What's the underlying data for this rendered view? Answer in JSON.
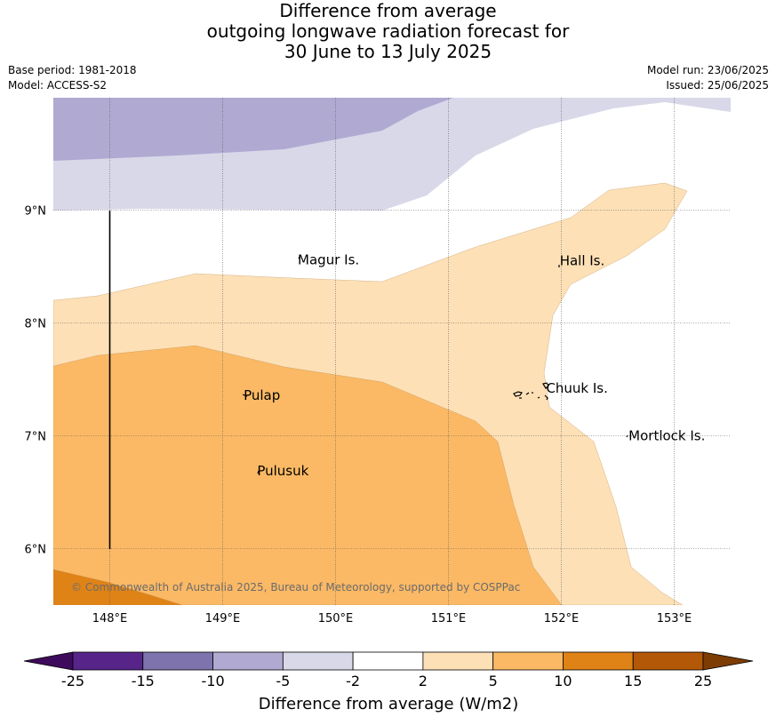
{
  "title": {
    "line1": "Difference from average",
    "line2": "outgoing longwave radiation forecast for",
    "line3": "30 June to 13 July 2025"
  },
  "meta": {
    "base_period": "Base period: 1981-2018",
    "model": "Model: ACCESS-S2",
    "model_run": "Model run: 23/06/2025",
    "issued": "Issued: 25/06/2025"
  },
  "map": {
    "lon_range": [
      147.5,
      153.5
    ],
    "lat_range": [
      5.5,
      10.0
    ],
    "lon_ticks": [
      {
        "value": 148,
        "label": "148°E"
      },
      {
        "value": 149,
        "label": "149°E"
      },
      {
        "value": 150,
        "label": "150°E"
      },
      {
        "value": 151,
        "label": "151°E"
      },
      {
        "value": 152,
        "label": "152°E"
      },
      {
        "value": 153,
        "label": "153°E"
      }
    ],
    "lat_ticks": [
      {
        "value": 9,
        "label": "9°N"
      },
      {
        "value": 8,
        "label": "8°N"
      },
      {
        "value": 7,
        "label": "7°N"
      },
      {
        "value": 6,
        "label": "6°N"
      }
    ],
    "places": [
      {
        "name": "Magur Is.",
        "lon": 149.65,
        "lat": 8.56
      },
      {
        "name": "Hall Is.",
        "lon": 151.97,
        "lat": 8.55
      },
      {
        "name": "Pulap",
        "lon": 149.17,
        "lat": 7.36
      },
      {
        "name": "Chuuk Is.",
        "lon": 151.85,
        "lat": 7.42
      },
      {
        "name": "Mortlock Is.",
        "lon": 152.58,
        "lat": 7.0
      },
      {
        "name": "Pulusuk",
        "lon": 149.29,
        "lat": 6.69
      }
    ],
    "copyright": "© Commonwealth of Australia 2025, Bureau of Meteorology, supported by COSPPac",
    "colors": {
      "neg10_neg5": "#b0aad2",
      "neg5_neg2": "#d8d8e9",
      "pos2_5": "#fde0b6",
      "pos5_10": "#fbb965",
      "pos10_15": "#e08317"
    }
  },
  "colorbar": {
    "title": "Difference from average (W/m2)",
    "ticks": [
      "-25",
      "-15",
      "-10",
      "-5",
      "-2",
      "2",
      "5",
      "10",
      "15",
      "25"
    ],
    "colors": [
      "#3e0a5b",
      "#57258a",
      "#7f73ad",
      "#b0aad2",
      "#d8d8e9",
      "#ffffff",
      "#fde0b6",
      "#fbb965",
      "#e08317",
      "#b35806",
      "#7d3c04"
    ]
  }
}
